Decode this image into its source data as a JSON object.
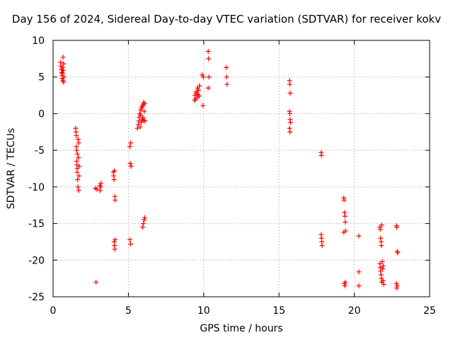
{
  "chart_data": {
    "type": "scatter",
    "title": "Day 156 of 2024, Sidereal Day-to-day VTEC variation (SDTVAR) for receiver kokv",
    "xlabel": "GPS time / hours",
    "ylabel": "SDTVAR / TECUs",
    "xlim": [
      0,
      25
    ],
    "ylim": [
      -25,
      10
    ],
    "xticks": [
      0,
      5,
      10,
      15,
      20,
      25
    ],
    "yticks": [
      -25,
      -20,
      -15,
      -10,
      -5,
      0,
      5,
      10
    ],
    "grid": true,
    "marker": "+",
    "color": "#ff0000",
    "series": [
      {
        "name": "SDTVAR",
        "points": [
          [
            0.5,
            7.0
          ],
          [
            0.52,
            6.5
          ],
          [
            0.55,
            6.0
          ],
          [
            0.58,
            5.6
          ],
          [
            0.6,
            5.2
          ],
          [
            0.6,
            4.8
          ],
          [
            0.62,
            6.3
          ],
          [
            0.63,
            5.5
          ],
          [
            0.65,
            4.5
          ],
          [
            0.66,
            7.7
          ],
          [
            0.68,
            5.9
          ],
          [
            0.7,
            4.3
          ],
          [
            0.7,
            6.8
          ],
          [
            0.72,
            5.0
          ],
          [
            1.5,
            -2.0
          ],
          [
            1.52,
            -2.5
          ],
          [
            1.54,
            -3.0
          ],
          [
            1.55,
            -4.5
          ],
          [
            1.56,
            -5.0
          ],
          [
            1.57,
            -6.5
          ],
          [
            1.58,
            -7.0
          ],
          [
            1.6,
            -7.5
          ],
          [
            1.6,
            -8.0
          ],
          [
            1.62,
            -5.5
          ],
          [
            1.63,
            -9.0
          ],
          [
            1.65,
            -10.0
          ],
          [
            1.66,
            -3.5
          ],
          [
            1.68,
            -6.0
          ],
          [
            1.7,
            -10.5
          ],
          [
            1.7,
            -4.0
          ],
          [
            1.72,
            -8.5
          ],
          [
            1.74,
            -7.2
          ],
          [
            2.8,
            -10.2
          ],
          [
            2.9,
            -10.3
          ],
          [
            2.85,
            -23.0
          ],
          [
            3.1,
            -9.8
          ],
          [
            3.12,
            -10.5
          ],
          [
            3.15,
            -10.0
          ],
          [
            3.18,
            -9.5
          ],
          [
            4.0,
            -8.0
          ],
          [
            4.02,
            -8.5
          ],
          [
            4.05,
            -9.0
          ],
          [
            4.08,
            -7.8
          ],
          [
            4.1,
            -11.3
          ],
          [
            4.12,
            -11.8
          ],
          [
            4.05,
            -17.5
          ],
          [
            4.08,
            -18.0
          ],
          [
            4.1,
            -18.5
          ],
          [
            4.12,
            -17.2
          ],
          [
            5.1,
            -4.5
          ],
          [
            5.15,
            -4.0
          ],
          [
            5.12,
            -6.8
          ],
          [
            5.18,
            -7.2
          ],
          [
            5.1,
            -17.2
          ],
          [
            5.15,
            -17.8
          ],
          [
            5.6,
            -2.0
          ],
          [
            5.65,
            -1.5
          ],
          [
            5.7,
            -1.0
          ],
          [
            5.72,
            -0.5
          ],
          [
            5.75,
            0.0
          ],
          [
            5.78,
            -1.8
          ],
          [
            5.8,
            -0.2
          ],
          [
            5.82,
            0.5
          ],
          [
            5.85,
            -1.2
          ],
          [
            5.88,
            0.8
          ],
          [
            5.9,
            -0.8
          ],
          [
            5.92,
            1.0
          ],
          [
            5.95,
            -0.5
          ],
          [
            5.98,
            1.2
          ],
          [
            6.0,
            1.5
          ],
          [
            6.02,
            -0.9
          ],
          [
            6.05,
            0.3
          ],
          [
            6.08,
            1.4
          ],
          [
            6.1,
            -1.0
          ],
          [
            5.95,
            -15.5
          ],
          [
            6.0,
            -15.0
          ],
          [
            6.05,
            -14.5
          ],
          [
            6.08,
            -14.2
          ],
          [
            9.4,
            1.8
          ],
          [
            9.42,
            2.5
          ],
          [
            9.45,
            2.0
          ],
          [
            9.5,
            2.8
          ],
          [
            9.52,
            3.0
          ],
          [
            9.55,
            2.2
          ],
          [
            9.6,
            3.5
          ],
          [
            9.62,
            2.6
          ],
          [
            9.65,
            3.2
          ],
          [
            9.7,
            2.4
          ],
          [
            9.72,
            3.8
          ],
          [
            9.9,
            5.3
          ],
          [
            9.95,
            1.1
          ],
          [
            9.98,
            5.0
          ],
          [
            10.3,
            8.5
          ],
          [
            10.32,
            7.5
          ],
          [
            10.35,
            5.0
          ],
          [
            10.3,
            3.5
          ],
          [
            11.5,
            6.3
          ],
          [
            11.52,
            5.0
          ],
          [
            11.55,
            4.0
          ],
          [
            15.7,
            4.5
          ],
          [
            15.72,
            4.0
          ],
          [
            15.74,
            2.8
          ],
          [
            15.7,
            0.3
          ],
          [
            15.72,
            0.0
          ],
          [
            15.74,
            -0.8
          ],
          [
            15.76,
            -1.2
          ],
          [
            15.7,
            -2.0
          ],
          [
            15.73,
            -2.5
          ],
          [
            17.8,
            -5.3
          ],
          [
            17.82,
            -5.7
          ],
          [
            17.8,
            -16.5
          ],
          [
            17.82,
            -17.0
          ],
          [
            17.84,
            -17.5
          ],
          [
            17.86,
            -18.0
          ],
          [
            19.3,
            -11.5
          ],
          [
            19.32,
            -11.8
          ],
          [
            19.35,
            -13.5
          ],
          [
            19.38,
            -14.0
          ],
          [
            19.4,
            -14.8
          ],
          [
            19.42,
            -16.0
          ],
          [
            19.3,
            -16.2
          ],
          [
            19.35,
            -23.2
          ],
          [
            19.38,
            -23.5
          ],
          [
            19.4,
            -23.0
          ],
          [
            20.3,
            -16.7
          ],
          [
            20.3,
            -21.6
          ],
          [
            20.3,
            -23.5
          ],
          [
            21.7,
            -15.5
          ],
          [
            21.72,
            -15.8
          ],
          [
            21.75,
            -17.0
          ],
          [
            21.78,
            -17.5
          ],
          [
            21.8,
            -18.0
          ],
          [
            21.82,
            -15.2
          ],
          [
            21.7,
            -20.5
          ],
          [
            21.72,
            -21.0
          ],
          [
            21.75,
            -21.5
          ],
          [
            21.78,
            -22.0
          ],
          [
            21.8,
            -22.5
          ],
          [
            21.82,
            -23.0
          ],
          [
            21.85,
            -20.2
          ],
          [
            21.88,
            -21.2
          ],
          [
            21.9,
            -22.8
          ],
          [
            21.92,
            -20.8
          ],
          [
            21.95,
            -23.3
          ],
          [
            22.8,
            -15.3
          ],
          [
            22.82,
            -15.5
          ],
          [
            22.85,
            -18.8
          ],
          [
            22.88,
            -19.0
          ],
          [
            22.8,
            -23.2
          ],
          [
            22.82,
            -23.8
          ],
          [
            22.85,
            -23.5
          ]
        ]
      }
    ]
  }
}
